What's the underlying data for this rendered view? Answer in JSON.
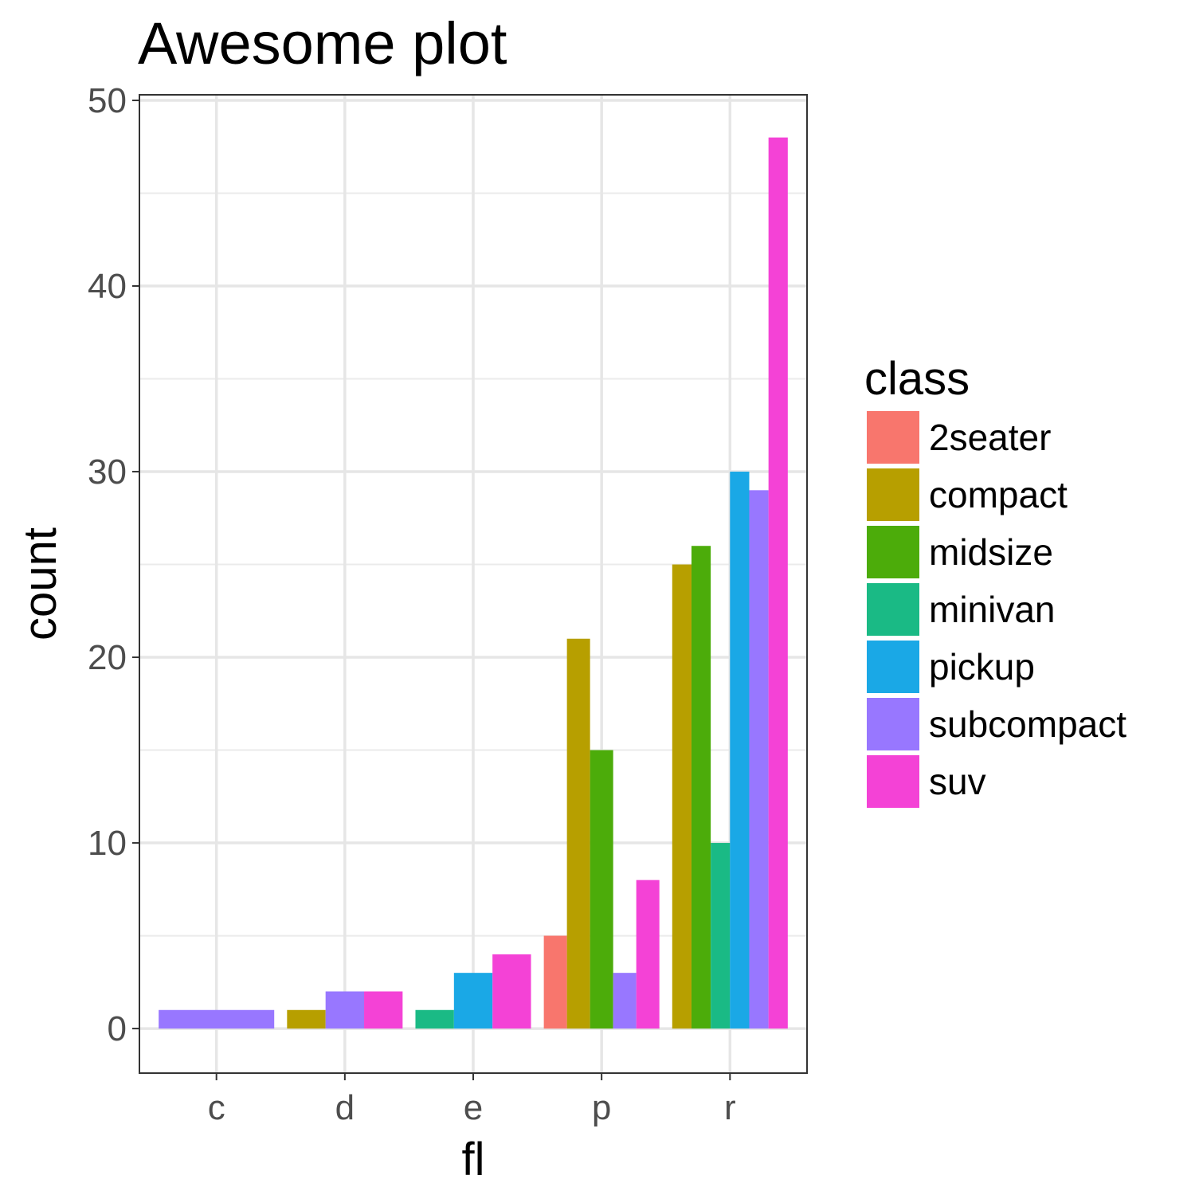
{
  "chart_data": {
    "type": "bar",
    "title": "Awesome plot",
    "xlabel": "fl",
    "ylabel": "count",
    "categories": [
      "c",
      "d",
      "e",
      "p",
      "r"
    ],
    "ylim": [
      -2.4,
      50.3
    ],
    "yticks": [
      0,
      10,
      20,
      30,
      40,
      50
    ],
    "grid": true,
    "legend": {
      "title": "class",
      "position": "right"
    },
    "series": [
      {
        "name": "2seater",
        "color": "#F8766D"
      },
      {
        "name": "compact",
        "color": "#B79F00"
      },
      {
        "name": "midsize",
        "color": "#4CAC0A"
      },
      {
        "name": "minivan",
        "color": "#1ABA85"
      },
      {
        "name": "pickup",
        "color": "#1AA8E6"
      },
      {
        "name": "subcompact",
        "color": "#9877FF"
      },
      {
        "name": "suv",
        "color": "#F442D6"
      }
    ],
    "bars": [
      {
        "category": "c",
        "values": [
          {
            "series": "subcompact",
            "value": 1
          }
        ]
      },
      {
        "category": "d",
        "values": [
          {
            "series": "compact",
            "value": 1
          },
          {
            "series": "subcompact",
            "value": 2
          },
          {
            "series": "suv",
            "value": 2
          }
        ]
      },
      {
        "category": "e",
        "values": [
          {
            "series": "minivan",
            "value": 1
          },
          {
            "series": "pickup",
            "value": 3
          },
          {
            "series": "suv",
            "value": 4
          }
        ]
      },
      {
        "category": "p",
        "values": [
          {
            "series": "2seater",
            "value": 5
          },
          {
            "series": "compact",
            "value": 21
          },
          {
            "series": "midsize",
            "value": 15
          },
          {
            "series": "subcompact",
            "value": 3
          },
          {
            "series": "suv",
            "value": 8
          }
        ]
      },
      {
        "category": "r",
        "values": [
          {
            "series": "compact",
            "value": 25
          },
          {
            "series": "midsize",
            "value": 26
          },
          {
            "series": "minivan",
            "value": 10
          },
          {
            "series": "pickup",
            "value": 30
          },
          {
            "series": "subcompact",
            "value": 29
          },
          {
            "series": "suv",
            "value": 48
          }
        ]
      }
    ]
  }
}
